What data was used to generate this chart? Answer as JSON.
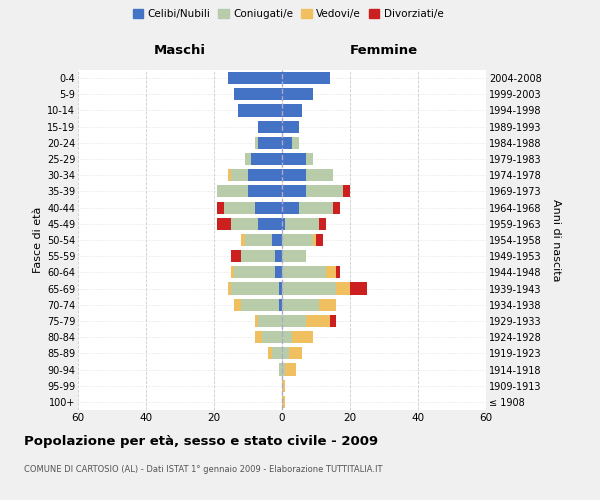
{
  "age_groups": [
    "100+",
    "95-99",
    "90-94",
    "85-89",
    "80-84",
    "75-79",
    "70-74",
    "65-69",
    "60-64",
    "55-59",
    "50-54",
    "45-49",
    "40-44",
    "35-39",
    "30-34",
    "25-29",
    "20-24",
    "15-19",
    "10-14",
    "5-9",
    "0-4"
  ],
  "birth_years": [
    "≤ 1908",
    "1909-1913",
    "1914-1918",
    "1919-1923",
    "1924-1928",
    "1929-1933",
    "1934-1938",
    "1939-1943",
    "1944-1948",
    "1949-1953",
    "1954-1958",
    "1959-1963",
    "1964-1968",
    "1969-1973",
    "1974-1978",
    "1979-1983",
    "1984-1988",
    "1989-1993",
    "1994-1998",
    "1999-2003",
    "2004-2008"
  ],
  "maschi": {
    "celibi": [
      0,
      0,
      0,
      0,
      0,
      0,
      1,
      1,
      2,
      2,
      3,
      7,
      8,
      10,
      10,
      9,
      7,
      7,
      13,
      14,
      16
    ],
    "coniugati": [
      0,
      0,
      1,
      3,
      6,
      7,
      11,
      14,
      12,
      10,
      8,
      8,
      9,
      9,
      5,
      2,
      1,
      0,
      0,
      0,
      0
    ],
    "vedovi": [
      0,
      0,
      0,
      1,
      2,
      1,
      2,
      1,
      1,
      0,
      1,
      0,
      0,
      0,
      1,
      0,
      0,
      0,
      0,
      0,
      0
    ],
    "divorziati": [
      0,
      0,
      0,
      0,
      0,
      0,
      0,
      0,
      0,
      3,
      0,
      4,
      2,
      0,
      0,
      0,
      0,
      0,
      0,
      0,
      0
    ]
  },
  "femmine": {
    "nubili": [
      0,
      0,
      0,
      0,
      0,
      0,
      0,
      0,
      0,
      0,
      0,
      1,
      5,
      7,
      7,
      7,
      3,
      5,
      6,
      9,
      14
    ],
    "coniugate": [
      0,
      0,
      1,
      2,
      3,
      7,
      11,
      16,
      13,
      7,
      9,
      10,
      10,
      11,
      8,
      2,
      2,
      0,
      0,
      0,
      0
    ],
    "vedove": [
      1,
      1,
      3,
      4,
      6,
      7,
      5,
      4,
      3,
      0,
      1,
      0,
      0,
      0,
      0,
      0,
      0,
      0,
      0,
      0,
      0
    ],
    "divorziate": [
      0,
      0,
      0,
      0,
      0,
      2,
      0,
      5,
      1,
      0,
      2,
      2,
      2,
      2,
      0,
      0,
      0,
      0,
      0,
      0,
      0
    ]
  },
  "colors": {
    "celibi_nubili": "#4472c4",
    "coniugati": "#b8ccaa",
    "vedovi": "#f0c060",
    "divorziati": "#cc2020"
  },
  "xlim": 60,
  "title": "Popolazione per età, sesso e stato civile - 2009",
  "subtitle": "COMUNE DI CARTOSIO (AL) - Dati ISTAT 1° gennaio 2009 - Elaborazione TUTTITALIA.IT",
  "ylabel_left": "Fasce di età",
  "ylabel_right": "Anni di nascita",
  "xlabel_left": "Maschi",
  "xlabel_right": "Femmine",
  "bg_color": "#f0f0f0",
  "plot_bg_color": "#ffffff",
  "legend_labels": [
    "Celibi/Nubili",
    "Coniugati/e",
    "Vedovi/e",
    "Divorziati/e"
  ]
}
